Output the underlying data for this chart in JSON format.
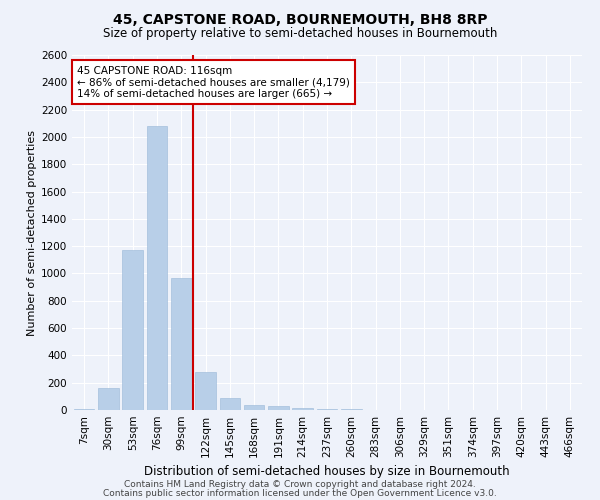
{
  "title": "45, CAPSTONE ROAD, BOURNEMOUTH, BH8 8RP",
  "subtitle": "Size of property relative to semi-detached houses in Bournemouth",
  "xlabel": "Distribution of semi-detached houses by size in Bournemouth",
  "ylabel": "Number of semi-detached properties",
  "footnote1": "Contains HM Land Registry data © Crown copyright and database right 2024.",
  "footnote2": "Contains public sector information licensed under the Open Government Licence v3.0.",
  "categories": [
    "7sqm",
    "30sqm",
    "53sqm",
    "76sqm",
    "99sqm",
    "122sqm",
    "145sqm",
    "168sqm",
    "191sqm",
    "214sqm",
    "237sqm",
    "260sqm",
    "283sqm",
    "306sqm",
    "329sqm",
    "351sqm",
    "374sqm",
    "397sqm",
    "420sqm",
    "443sqm",
    "466sqm"
  ],
  "values": [
    10,
    160,
    1170,
    2080,
    970,
    280,
    90,
    40,
    30,
    15,
    5,
    5,
    2,
    2,
    1,
    0,
    0,
    0,
    0,
    0,
    0
  ],
  "bar_color": "#b8cfe8",
  "bar_edge_color": "#9ab8d8",
  "property_line_x": 4.5,
  "annotation_title": "45 CAPSTONE ROAD: 116sqm",
  "annotation_line1": "← 86% of semi-detached houses are smaller (4,179)",
  "annotation_line2": "14% of semi-detached houses are larger (665) →",
  "annotation_box_facecolor": "#ffffff",
  "annotation_box_edgecolor": "#cc0000",
  "vline_color": "#cc0000",
  "ylim": [
    0,
    2600
  ],
  "yticks": [
    0,
    200,
    400,
    600,
    800,
    1000,
    1200,
    1400,
    1600,
    1800,
    2000,
    2200,
    2400,
    2600
  ],
  "background_color": "#eef2fa",
  "grid_color": "#ffffff",
  "title_fontsize": 10,
  "subtitle_fontsize": 8.5,
  "tick_fontsize": 7.5,
  "ylabel_fontsize": 8,
  "xlabel_fontsize": 8.5,
  "footnote_fontsize": 6.5,
  "annot_fontsize": 7.5
}
